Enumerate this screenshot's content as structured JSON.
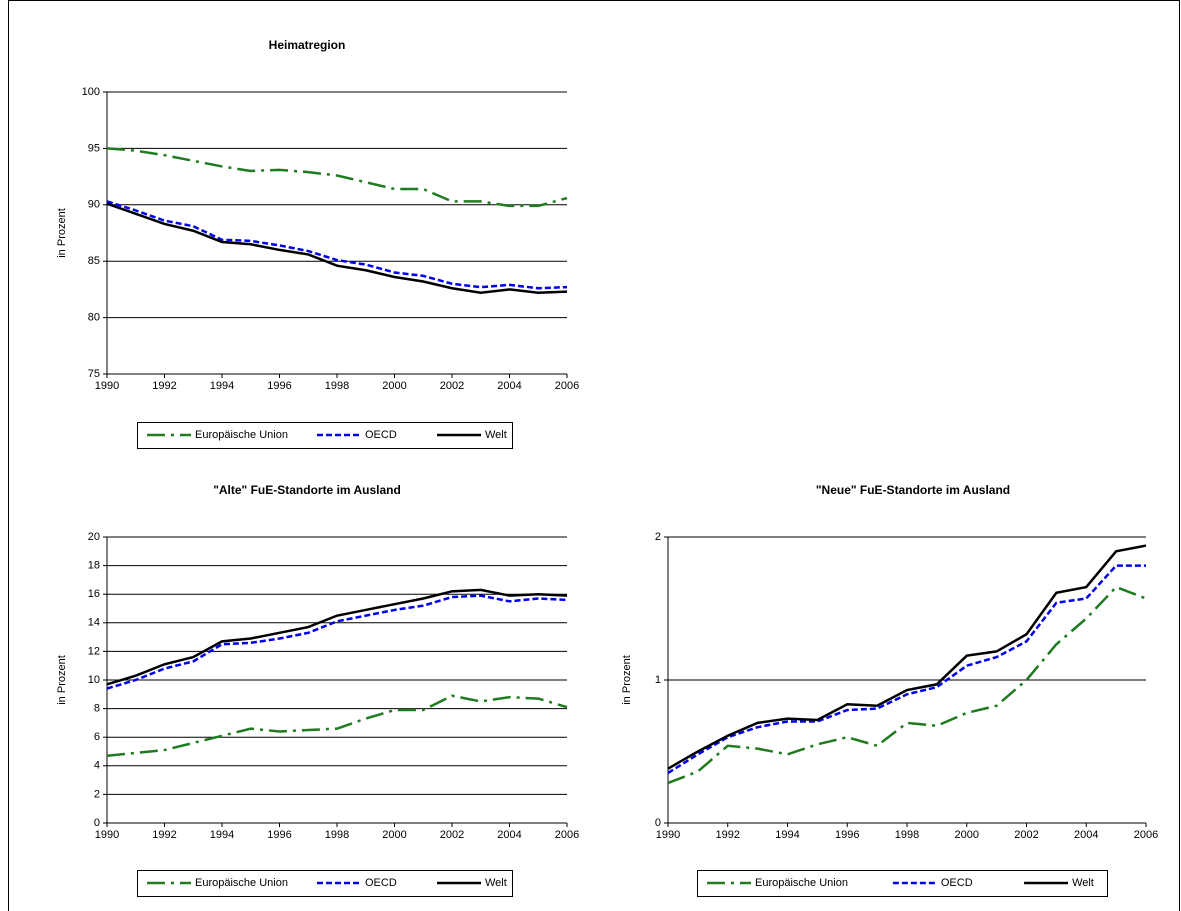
{
  "chart_data": [
    {
      "type": "line",
      "title": "Heimatregion",
      "y_label": "in Prozent",
      "x": [
        1990,
        1991,
        1992,
        1993,
        1994,
        1995,
        1996,
        1997,
        1998,
        1999,
        2000,
        2001,
        2002,
        2003,
        2004,
        2005,
        2006
      ],
      "xlim": [
        1990,
        2006
      ],
      "xticks": [
        1990,
        1992,
        1994,
        1996,
        1998,
        2000,
        2002,
        2004,
        2006
      ],
      "ylim": [
        75,
        100
      ],
      "yticks": [
        75,
        80,
        85,
        90,
        95,
        100
      ],
      "grid": true,
      "legend": "bottom",
      "series": [
        {
          "name": "Europäische Union",
          "color": "#1e7b1e",
          "line_style": "longdash",
          "values": [
            95,
            94.8,
            94.4,
            93.9,
            93.4,
            93.0,
            93.1,
            92.9,
            92.6,
            92.0,
            91.4,
            91.4,
            90.3,
            90.3,
            89.9,
            89.9,
            90.6
          ]
        },
        {
          "name": "OECD",
          "color": "#0000ee",
          "line_style": "dash",
          "values": [
            90.3,
            89.5,
            88.6,
            88.1,
            86.9,
            86.8,
            86.4,
            85.9,
            85.1,
            84.7,
            84.0,
            83.7,
            83.0,
            82.7,
            82.9,
            82.6,
            82.7
          ]
        },
        {
          "name": "Welt",
          "color": "#000000",
          "line_style": "solid",
          "values": [
            90.1,
            89.2,
            88.3,
            87.7,
            86.7,
            86.5,
            86.0,
            85.6,
            84.6,
            84.2,
            83.6,
            83.2,
            82.6,
            82.2,
            82.5,
            82.2,
            82.3
          ]
        }
      ]
    },
    {
      "type": "line",
      "title": "\"Alte\" FuE-Standorte  im Ausland",
      "y_label": "in Prozent",
      "x": [
        1990,
        1991,
        1992,
        1993,
        1994,
        1995,
        1996,
        1997,
        1998,
        1999,
        2000,
        2001,
        2002,
        2003,
        2004,
        2005,
        2006
      ],
      "xlim": [
        1990,
        2006
      ],
      "xticks": [
        1990,
        1992,
        1994,
        1996,
        1998,
        2000,
        2002,
        2004,
        2006
      ],
      "ylim": [
        0,
        20
      ],
      "yticks": [
        0,
        2,
        4,
        6,
        8,
        10,
        12,
        14,
        16,
        18,
        20
      ],
      "grid": true,
      "legend": "bottom",
      "series": [
        {
          "name": "Europäische Union",
          "color": "#1e7b1e",
          "line_style": "longdash",
          "values": [
            4.7,
            4.9,
            5.1,
            5.6,
            6.1,
            6.6,
            6.4,
            6.5,
            6.6,
            7.3,
            7.9,
            7.9,
            8.9,
            8.5,
            8.8,
            8.7,
            8.1
          ]
        },
        {
          "name": "OECD",
          "color": "#0000ee",
          "line_style": "dash",
          "values": [
            9.4,
            10.0,
            10.8,
            11.3,
            12.5,
            12.6,
            12.9,
            13.3,
            14.1,
            14.5,
            14.9,
            15.2,
            15.8,
            15.9,
            15.5,
            15.7,
            15.6
          ]
        },
        {
          "name": "Welt",
          "color": "#000000",
          "line_style": "solid",
          "values": [
            9.7,
            10.3,
            11.1,
            11.6,
            12.7,
            12.9,
            13.3,
            13.7,
            14.5,
            14.9,
            15.3,
            15.7,
            16.2,
            16.3,
            15.9,
            16.0,
            15.9
          ]
        }
      ]
    },
    {
      "type": "line",
      "title": "\"Neue\" FuE-Standorte  im Ausland",
      "y_label": "in Prozent",
      "x": [
        1990,
        1991,
        1992,
        1993,
        1994,
        1995,
        1996,
        1997,
        1998,
        1999,
        2000,
        2001,
        2002,
        2003,
        2004,
        2005,
        2006
      ],
      "xlim": [
        1990,
        2006
      ],
      "xticks": [
        1990,
        1992,
        1994,
        1996,
        1998,
        2000,
        2002,
        2004,
        2006
      ],
      "ylim": [
        0,
        2
      ],
      "yticks": [
        0,
        1,
        2
      ],
      "grid": true,
      "legend": "bottom",
      "series": [
        {
          "name": "Europäische Union",
          "color": "#1e7b1e",
          "line_style": "longdash",
          "values": [
            0.28,
            0.36,
            0.54,
            0.52,
            0.48,
            0.55,
            0.6,
            0.54,
            0.7,
            0.68,
            0.77,
            0.82,
            1.0,
            1.25,
            1.43,
            1.65,
            1.57
          ]
        },
        {
          "name": "OECD",
          "color": "#0000ee",
          "line_style": "dash",
          "values": [
            0.35,
            0.48,
            0.6,
            0.67,
            0.71,
            0.71,
            0.79,
            0.8,
            0.9,
            0.95,
            1.1,
            1.16,
            1.27,
            1.54,
            1.57,
            1.8,
            1.8
          ]
        },
        {
          "name": "Welt",
          "color": "#000000",
          "line_style": "solid",
          "values": [
            0.38,
            0.5,
            0.61,
            0.7,
            0.73,
            0.72,
            0.83,
            0.82,
            0.93,
            0.97,
            1.17,
            1.2,
            1.32,
            1.61,
            1.65,
            1.9,
            1.94
          ]
        }
      ]
    }
  ]
}
